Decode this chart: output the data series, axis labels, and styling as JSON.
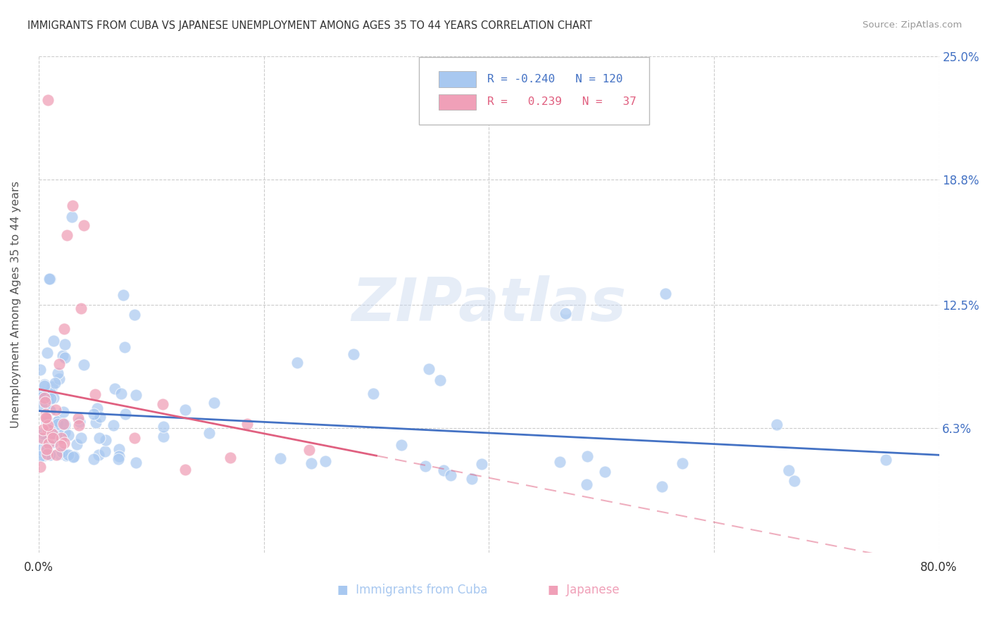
{
  "title": "IMMIGRANTS FROM CUBA VS JAPANESE UNEMPLOYMENT AMONG AGES 35 TO 44 YEARS CORRELATION CHART",
  "source": "Source: ZipAtlas.com",
  "ylabel": "Unemployment Among Ages 35 to 44 years",
  "xlim": [
    0,
    0.8
  ],
  "ylim": [
    0,
    0.25
  ],
  "xtick_positions": [
    0.0,
    0.2,
    0.4,
    0.6,
    0.8
  ],
  "xticklabels": [
    "0.0%",
    "",
    "",
    "",
    "80.0%"
  ],
  "ytick_positions": [
    0.063,
    0.125,
    0.188,
    0.25
  ],
  "ytick_labels": [
    "6.3%",
    "12.5%",
    "18.8%",
    "25.0%"
  ],
  "cuba_color": "#a8c8f0",
  "cuba_trend_color": "#4472c4",
  "japan_color": "#f0a0b8",
  "japan_trend_color": "#e06080",
  "R_cuba": -0.24,
  "N_cuba": 120,
  "R_japan": 0.239,
  "N_japan": 37,
  "grid_color": "#cccccc",
  "bg_color": "#ffffff",
  "watermark": "ZIPatlas",
  "title_color": "#333333",
  "source_color": "#999999",
  "legend_text_cuba_color": "#4472c4",
  "legend_text_japan_color": "#e06080",
  "right_axis_color": "#4472c4"
}
